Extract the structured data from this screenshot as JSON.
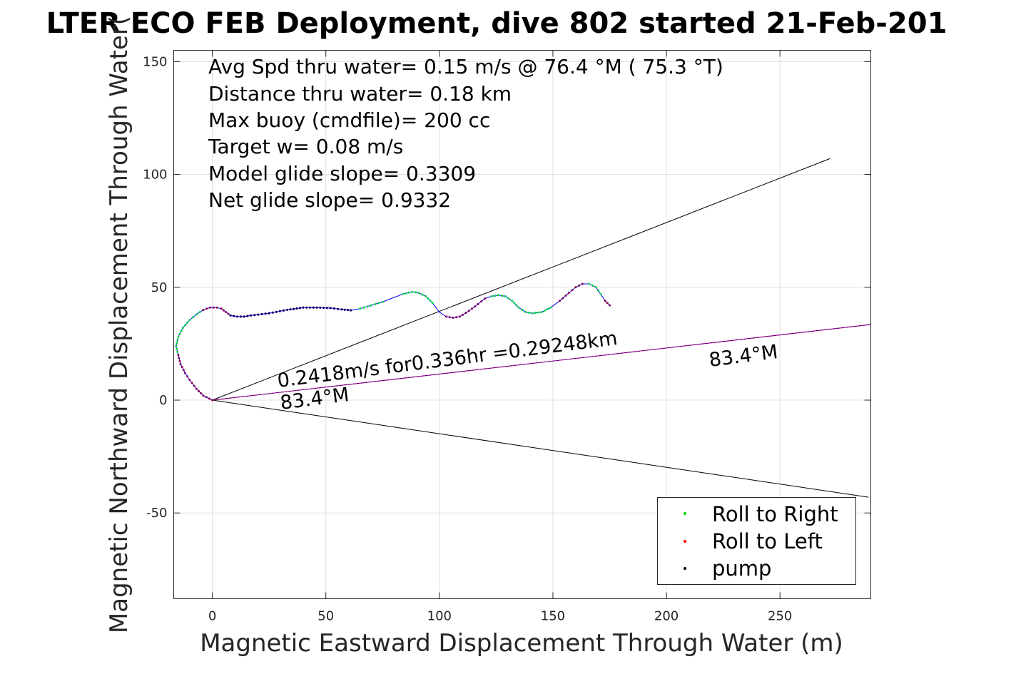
{
  "chart_data": {
    "type": "scatter",
    "title": "LTER ECO FEB Deployment, dive 802 started 21-Feb-201",
    "xlabel": "Magnetic Eastward Displacement Through Water (m)",
    "ylabel": "Magnetic Northward Displacement Through Water(",
    "xlim": [
      -17,
      290
    ],
    "ylim": [
      -88,
      155
    ],
    "xticks": [
      0,
      50,
      100,
      150,
      200,
      250
    ],
    "yticks": [
      -50,
      0,
      50,
      100,
      150
    ],
    "xtick_labels": [
      "0",
      "50",
      "100",
      "150",
      "200",
      "250"
    ],
    "ytick_labels": [
      "-50",
      "0",
      "50",
      "100",
      "150"
    ],
    "grid": true,
    "info_lines": [
      "Avg Spd thru water=  0.15 m/s @  76.4 °M ( 75.3 °T)",
      "Distance thru water=  0.18 km",
      "Max buoy (cmdfile)= 200 cc",
      "Target w= 0.08 m/s",
      "Model glide slope= 0.3309",
      "Net glide slope= 0.9332"
    ],
    "annotations": {
      "current": "0.2418m/s for0.336hr =0.29248km",
      "heading_near": "83.4°M",
      "heading_far": "83.4°M"
    },
    "lines": {
      "cone_upper_end": [
        272,
        107
      ],
      "cone_lower_end": [
        289,
        -43
      ],
      "current_end": [
        290,
        33.5
      ]
    },
    "track": [
      [
        0,
        0
      ],
      [
        -4,
        2
      ],
      [
        -7,
        5
      ],
      [
        -10,
        9
      ],
      [
        -12,
        12
      ],
      [
        -14,
        16
      ],
      [
        -15,
        20
      ],
      [
        -16,
        24
      ],
      [
        -15,
        28
      ],
      [
        -13,
        32
      ],
      [
        -10,
        35.5
      ],
      [
        -7,
        38
      ],
      [
        -4,
        40
      ],
      [
        -1,
        41
      ],
      [
        2,
        41
      ],
      [
        4,
        40.5
      ],
      [
        6,
        39
      ],
      [
        8,
        37.5
      ],
      [
        11,
        37
      ],
      [
        14,
        37
      ],
      [
        17,
        37.5
      ],
      [
        25,
        38.5
      ],
      [
        33,
        40
      ],
      [
        40,
        41
      ],
      [
        46,
        41
      ],
      [
        52,
        40.8
      ],
      [
        57,
        40.2
      ],
      [
        61,
        39.8
      ],
      [
        65,
        40.5
      ],
      [
        70,
        42
      ],
      [
        75,
        43.5
      ],
      [
        80,
        45.5
      ],
      [
        84,
        47
      ],
      [
        88,
        48
      ],
      [
        91,
        47.5
      ],
      [
        94,
        46
      ],
      [
        97,
        43
      ],
      [
        100,
        39
      ],
      [
        103,
        37
      ],
      [
        106,
        36.5
      ],
      [
        109,
        37
      ],
      [
        113,
        39.5
      ],
      [
        117,
        42.5
      ],
      [
        120,
        45
      ],
      [
        123,
        46
      ],
      [
        126,
        46.5
      ],
      [
        129,
        46
      ],
      [
        132,
        44
      ],
      [
        135,
        41
      ],
      [
        138,
        39
      ],
      [
        141,
        38.5
      ],
      [
        145,
        39
      ],
      [
        149,
        41
      ],
      [
        153,
        44
      ],
      [
        157,
        47.5
      ],
      [
        160,
        50
      ],
      [
        163,
        51.5
      ],
      [
        166,
        51.5
      ],
      [
        169,
        50
      ],
      [
        171,
        47
      ],
      [
        173,
        44
      ],
      [
        175,
        42
      ]
    ],
    "series": [
      {
        "name": "Roll to Right",
        "color": "#00ee00",
        "segments": [
          [
            6,
            12
          ],
          [
            28,
            30
          ],
          [
            32,
            36
          ],
          [
            44,
            52
          ],
          [
            57,
            59
          ]
        ]
      },
      {
        "name": "Roll to Left",
        "color": "#ff0000",
        "segments": [
          [
            0,
            6
          ],
          [
            12,
            27
          ],
          [
            38,
            43
          ],
          [
            53,
            56
          ],
          [
            60,
            61
          ]
        ]
      },
      {
        "name": "pump",
        "color": "#000000",
        "segments": [
          [
            17,
            27
          ]
        ]
      }
    ],
    "colors": {
      "track_line": "#0000ff",
      "current_line": "#b000b0",
      "cone_lines": "#000000",
      "grid": "#e0e0e0",
      "left_dot": "#8a0050",
      "pump_dot": "#000060",
      "right_dot": "#00dd44"
    },
    "legend": {
      "position": "bottom-right",
      "entries": [
        "Roll to Right",
        "Roll to Left",
        "pump"
      ]
    }
  }
}
